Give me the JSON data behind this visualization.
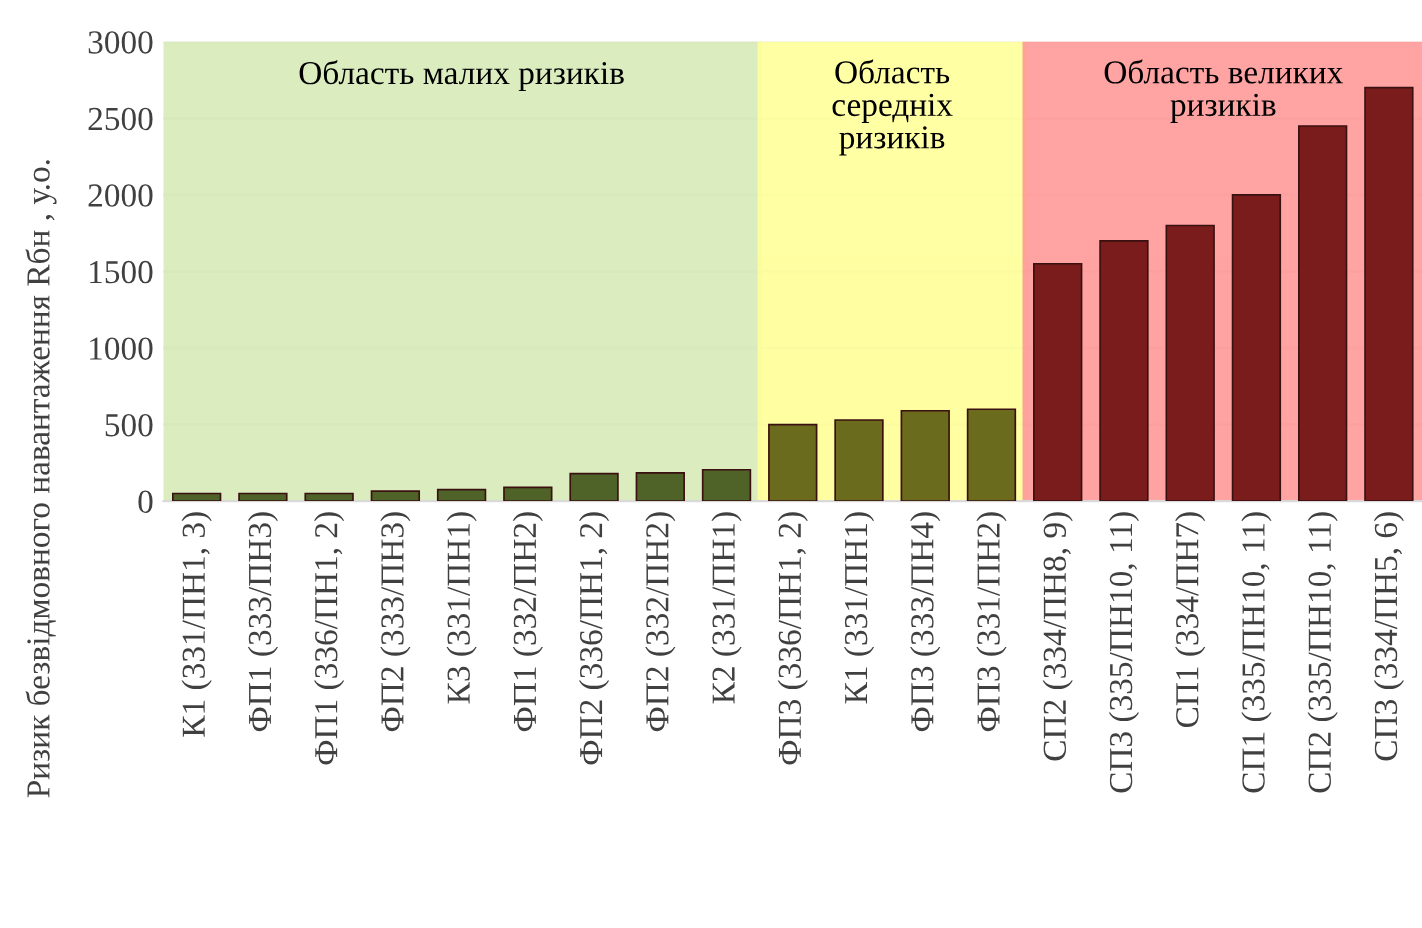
{
  "chart_data": {
    "type": "bar",
    "ylabel": "Ризик безвідмовного навантаження Rбн , у.о.",
    "categories": [
      "К1 (331/ПН1, 3)",
      "ФП1 (333/ПН3)",
      "ФП1 (336/ПН1, 2)",
      "ФП2 (333/ПН3)",
      "К3 (331/ПН1)",
      "ФП1 (332/ПН2)",
      "ФП2 (336/ПН1, 2)",
      "ФП2 (332/ПН2)",
      "К2 (331/ПН1)",
      "ФП3 (336/ПН1, 2)",
      "К1 (331/ПН1)",
      "ФП3 (333/ПН4)",
      "ФП3 (331/ПН2)",
      "СП2 (334/ПН8, 9)",
      "СП3 (335/ПН10, 11)",
      "СП1 (334/ПН7)",
      "СП1 (335/ПН10, 11)",
      "СП2 (335/ПН10, 11)",
      "СП3 (334/ПН5, 6)"
    ],
    "values": [
      50,
      50,
      50,
      65,
      75,
      90,
      180,
      185,
      205,
      500,
      530,
      590,
      600,
      1550,
      1700,
      1800,
      2000,
      2450,
      2700
    ],
    "colors": [
      "#4f6228",
      "#4f6228",
      "#4f6228",
      "#4f6228",
      "#4f6228",
      "#4f6228",
      "#4f6228",
      "#4f6228",
      "#4f6228",
      "#6b6b1e",
      "#6b6b1e",
      "#6b6b1e",
      "#6b6b1e",
      "#7b1c1c",
      "#7b1c1c",
      "#7b1c1c",
      "#7b1c1c",
      "#7b1c1c",
      "#7b1c1c"
    ],
    "ylim": [
      0,
      3000
    ],
    "yticks": [
      0,
      500,
      1000,
      1500,
      2000,
      2500,
      3000
    ],
    "grid": "y",
    "bands": [
      {
        "axis": "x",
        "from": "К1 (331/ПН1, 3)",
        "to": "К2 (331/ПН1)",
        "label": "Область малих ризиків",
        "color": "#d8ebb8"
      },
      {
        "axis": "x",
        "from": "ФП3 (336/ПН1, 2)",
        "to": "ФП3 (331/ПН2)",
        "label": "Область\nсередніх\nризиків",
        "color": "#ffff99"
      },
      {
        "axis": "x",
        "from": "СП2 (334/ПН8, 9)",
        "to": "СП3 (334/ПН5, 6)",
        "label": "Область великих\nризиків",
        "color": "#ff9999"
      }
    ]
  }
}
